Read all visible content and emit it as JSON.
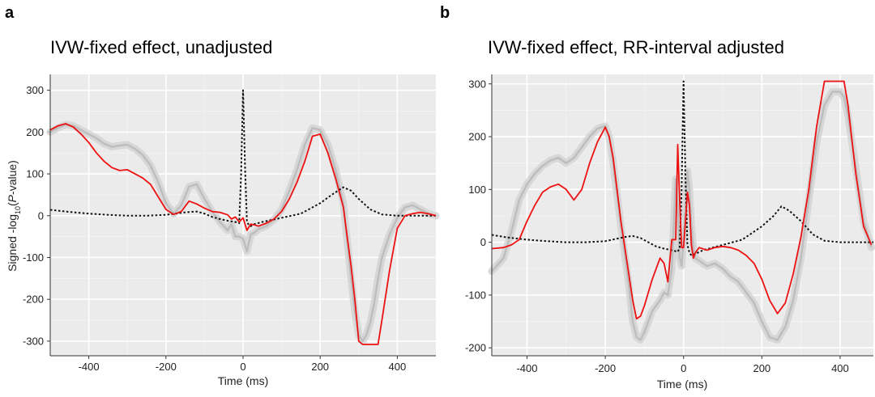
{
  "chart_data": [
    {
      "panel": "a",
      "type": "line",
      "title": "IVW-fixed effect, unadjusted",
      "xlabel": "Time (ms)",
      "ylabel_parts": [
        "Signed -log",
        "10",
        "(",
        "P",
        "-value)"
      ],
      "xlim": [
        -500,
        500
      ],
      "ylim": [
        -335,
        338
      ],
      "xticks": [
        -400,
        -200,
        0,
        200,
        400
      ],
      "yticks": [
        -300,
        -200,
        -100,
        0,
        100,
        200,
        300
      ],
      "grid": true,
      "colors": {
        "red": "#ee1111",
        "grey": "#bdbdbd",
        "band": "#d3d3d3",
        "dotted": "#111111",
        "panel_bg": "#ebebeb"
      },
      "series": [
        {
          "key": "red",
          "style": "solid",
          "x": [
            -500,
            -480,
            -460,
            -440,
            -420,
            -400,
            -380,
            -360,
            -340,
            -320,
            -300,
            -280,
            -260,
            -240,
            -220,
            -200,
            -180,
            -160,
            -140,
            -120,
            -100,
            -80,
            -60,
            -40,
            -30,
            -20,
            -10,
            0,
            10,
            20,
            30,
            40,
            60,
            80,
            100,
            120,
            140,
            160,
            180,
            200,
            220,
            240,
            260,
            270,
            280,
            290,
            300,
            310,
            320,
            330,
            340,
            350,
            360,
            380,
            400,
            420,
            440,
            460,
            480,
            500
          ],
          "y": [
            205,
            215,
            220,
            212,
            195,
            175,
            150,
            130,
            115,
            108,
            110,
            100,
            90,
            75,
            45,
            15,
            3,
            10,
            35,
            28,
            18,
            10,
            8,
            2,
            -8,
            -3,
            -15,
            -5,
            -35,
            -20,
            -22,
            -25,
            -18,
            -8,
            10,
            40,
            80,
            130,
            190,
            195,
            150,
            90,
            20,
            -50,
            -120,
            -200,
            -300,
            -308,
            -308,
            -308,
            -308,
            -308,
            -250,
            -130,
            -30,
            0,
            5,
            8,
            5,
            0
          ]
        },
        {
          "key": "grey",
          "style": "band",
          "x": [
            -500,
            -480,
            -460,
            -440,
            -420,
            -400,
            -380,
            -360,
            -340,
            -320,
            -300,
            -280,
            -260,
            -240,
            -220,
            -200,
            -180,
            -160,
            -140,
            -120,
            -100,
            -80,
            -60,
            -40,
            -30,
            -20,
            -10,
            0,
            10,
            20,
            30,
            40,
            60,
            80,
            100,
            120,
            140,
            160,
            180,
            200,
            220,
            240,
            260,
            270,
            280,
            290,
            300,
            310,
            320,
            330,
            340,
            350,
            360,
            380,
            400,
            420,
            440,
            460,
            480,
            500
          ],
          "y": [
            200,
            210,
            218,
            215,
            205,
            195,
            185,
            172,
            165,
            168,
            170,
            160,
            145,
            120,
            80,
            30,
            5,
            25,
            70,
            75,
            40,
            10,
            -15,
            -35,
            -20,
            -50,
            -50,
            -55,
            -85,
            -45,
            -40,
            -32,
            -25,
            -10,
            15,
            60,
            110,
            170,
            210,
            205,
            170,
            110,
            30,
            -60,
            -150,
            -230,
            -285,
            -300,
            -285,
            -255,
            -210,
            -150,
            -100,
            -45,
            -5,
            20,
            25,
            15,
            5,
            0
          ]
        },
        {
          "key": "dotted",
          "style": "dotted",
          "x": [
            -500,
            -450,
            -400,
            -350,
            -300,
            -250,
            -200,
            -150,
            -120,
            -100,
            -80,
            -60,
            -40,
            -20,
            -10,
            -5,
            0,
            5,
            10,
            15,
            20,
            30,
            50,
            100,
            150,
            200,
            230,
            260,
            280,
            300,
            330,
            360,
            400,
            450,
            500
          ],
          "y": [
            14,
            9,
            5,
            2,
            0,
            0,
            2,
            8,
            10,
            5,
            -3,
            -8,
            -12,
            -15,
            -18,
            100,
            300,
            120,
            -15,
            -22,
            -25,
            -20,
            -15,
            -5,
            5,
            30,
            50,
            68,
            60,
            40,
            15,
            3,
            0,
            0,
            0
          ]
        }
      ]
    },
    {
      "panel": "b",
      "type": "line",
      "title": "IVW-fixed effect, RR-interval adjusted",
      "xlabel": "Time (ms)",
      "xlim": [
        -490,
        485
      ],
      "ylim": [
        -215,
        318
      ],
      "xticks": [
        -400,
        -200,
        0,
        200,
        400
      ],
      "yticks": [
        -200,
        -100,
        0,
        100,
        200,
        300
      ],
      "grid": true,
      "colors": {
        "red": "#ee1111",
        "grey": "#bdbdbd",
        "band": "#d3d3d3",
        "dotted": "#111111",
        "panel_bg": "#ebebeb"
      },
      "series": [
        {
          "key": "red",
          "style": "solid",
          "x": [
            -490,
            -460,
            -440,
            -420,
            -400,
            -380,
            -360,
            -340,
            -320,
            -300,
            -280,
            -260,
            -240,
            -220,
            -200,
            -190,
            -180,
            -160,
            -140,
            -130,
            -120,
            -110,
            -100,
            -80,
            -60,
            -50,
            -40,
            -30,
            -20,
            -15,
            -10,
            -5,
            0,
            5,
            10,
            15,
            20,
            25,
            30,
            40,
            60,
            80,
            100,
            120,
            140,
            160,
            180,
            200,
            220,
            240,
            260,
            280,
            300,
            320,
            340,
            360,
            380,
            400,
            410,
            420,
            440,
            460,
            480
          ],
          "y": [
            -12,
            -10,
            -5,
            5,
            40,
            70,
            95,
            105,
            110,
            100,
            80,
            100,
            150,
            190,
            218,
            200,
            160,
            40,
            -60,
            -110,
            -145,
            -140,
            -120,
            -70,
            -30,
            -40,
            -75,
            5,
            5,
            185,
            80,
            -10,
            -10,
            40,
            95,
            70,
            -5,
            -30,
            -20,
            -10,
            -15,
            -10,
            -8,
            -10,
            -15,
            -25,
            -40,
            -70,
            -110,
            -135,
            -115,
            -60,
            10,
            100,
            220,
            305,
            305,
            305,
            305,
            260,
            130,
            30,
            -5
          ]
        },
        {
          "key": "grey",
          "style": "band",
          "x": [
            -490,
            -460,
            -440,
            -420,
            -400,
            -380,
            -360,
            -340,
            -320,
            -300,
            -280,
            -260,
            -240,
            -220,
            -200,
            -190,
            -180,
            -160,
            -140,
            -130,
            -120,
            -110,
            -100,
            -80,
            -60,
            -50,
            -40,
            -30,
            -20,
            -15,
            -10,
            -5,
            0,
            5,
            10,
            15,
            20,
            25,
            30,
            40,
            60,
            80,
            100,
            120,
            140,
            160,
            180,
            200,
            220,
            240,
            260,
            280,
            300,
            320,
            340,
            360,
            380,
            400,
            410,
            420,
            440,
            460,
            480
          ],
          "y": [
            -55,
            -30,
            20,
            80,
            110,
            130,
            145,
            155,
            160,
            150,
            160,
            180,
            200,
            215,
            220,
            200,
            150,
            30,
            -80,
            -150,
            -180,
            -185,
            -170,
            -130,
            -110,
            -95,
            -100,
            -50,
            120,
            70,
            -30,
            -45,
            5,
            70,
            135,
            100,
            30,
            -10,
            -30,
            -35,
            -45,
            -40,
            -50,
            -65,
            -75,
            -95,
            -115,
            -150,
            -180,
            -185,
            -160,
            -110,
            -30,
            80,
            190,
            260,
            285,
            285,
            275,
            240,
            140,
            40,
            -10
          ]
        },
        {
          "key": "dotted",
          "style": "dotted",
          "x": [
            -490,
            -450,
            -400,
            -350,
            -300,
            -250,
            -200,
            -150,
            -130,
            -110,
            -90,
            -70,
            -50,
            -30,
            -15,
            -10,
            -5,
            0,
            5,
            10,
            15,
            20,
            30,
            50,
            100,
            150,
            200,
            230,
            250,
            270,
            300,
            330,
            360,
            400,
            450,
            485
          ],
          "y": [
            14,
            9,
            5,
            2,
            0,
            0,
            2,
            10,
            12,
            8,
            0,
            -8,
            -12,
            -15,
            -18,
            -10,
            100,
            305,
            120,
            -5,
            -20,
            -25,
            -22,
            -15,
            -5,
            5,
            30,
            50,
            68,
            60,
            40,
            15,
            3,
            0,
            0,
            0
          ]
        }
      ]
    }
  ]
}
